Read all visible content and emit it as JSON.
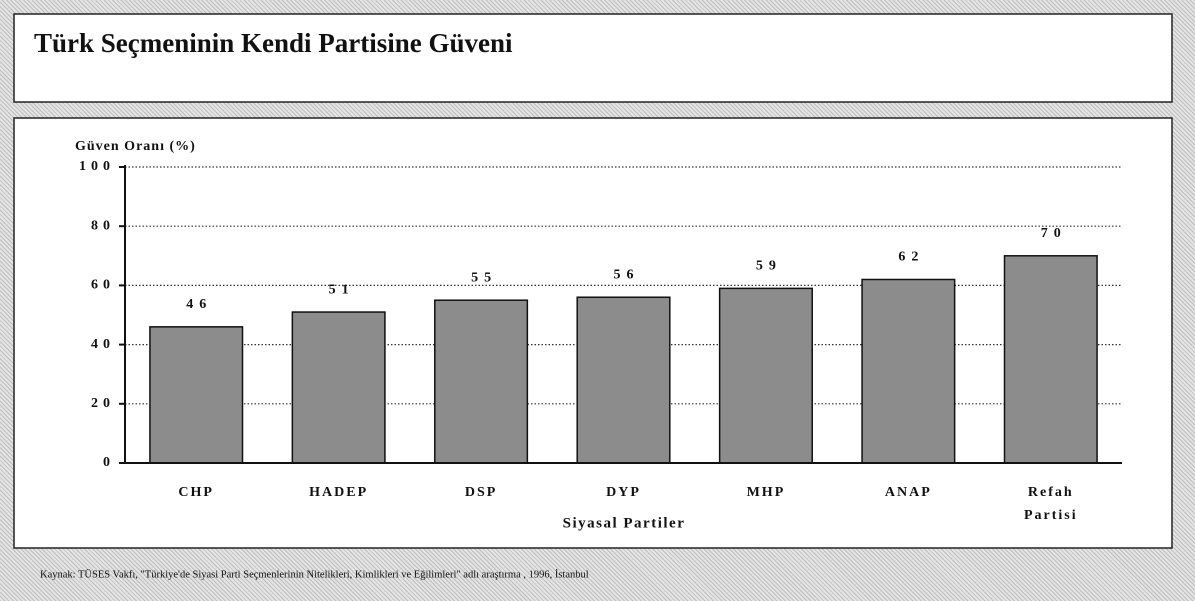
{
  "chart_data": {
    "type": "bar",
    "title": "Türk Seçmeninin Kendi Partisine Güveni",
    "y_label": "Güven Oranı (%)",
    "x_label": "Siyasal Partiler",
    "categories": [
      "CHP",
      "HADEP",
      "DSP",
      "DYP",
      "MHP",
      "ANAP",
      "Refah Partisi"
    ],
    "values": [
      46,
      51,
      55,
      56,
      59,
      62,
      70
    ],
    "color": "#8c8c8c",
    "ylim": [
      0,
      100
    ],
    "yticks": [
      0,
      20,
      40,
      60,
      80,
      100
    ],
    "grid": true,
    "source": "Kaynak: TÜSES Vakfı, \"Türkiye'de Siyasi Parti Seçmenlerinin Nitelikleri, Kimlikleri ve Eğilimleri\" adlı araştırma , 1996, İstanbul"
  }
}
